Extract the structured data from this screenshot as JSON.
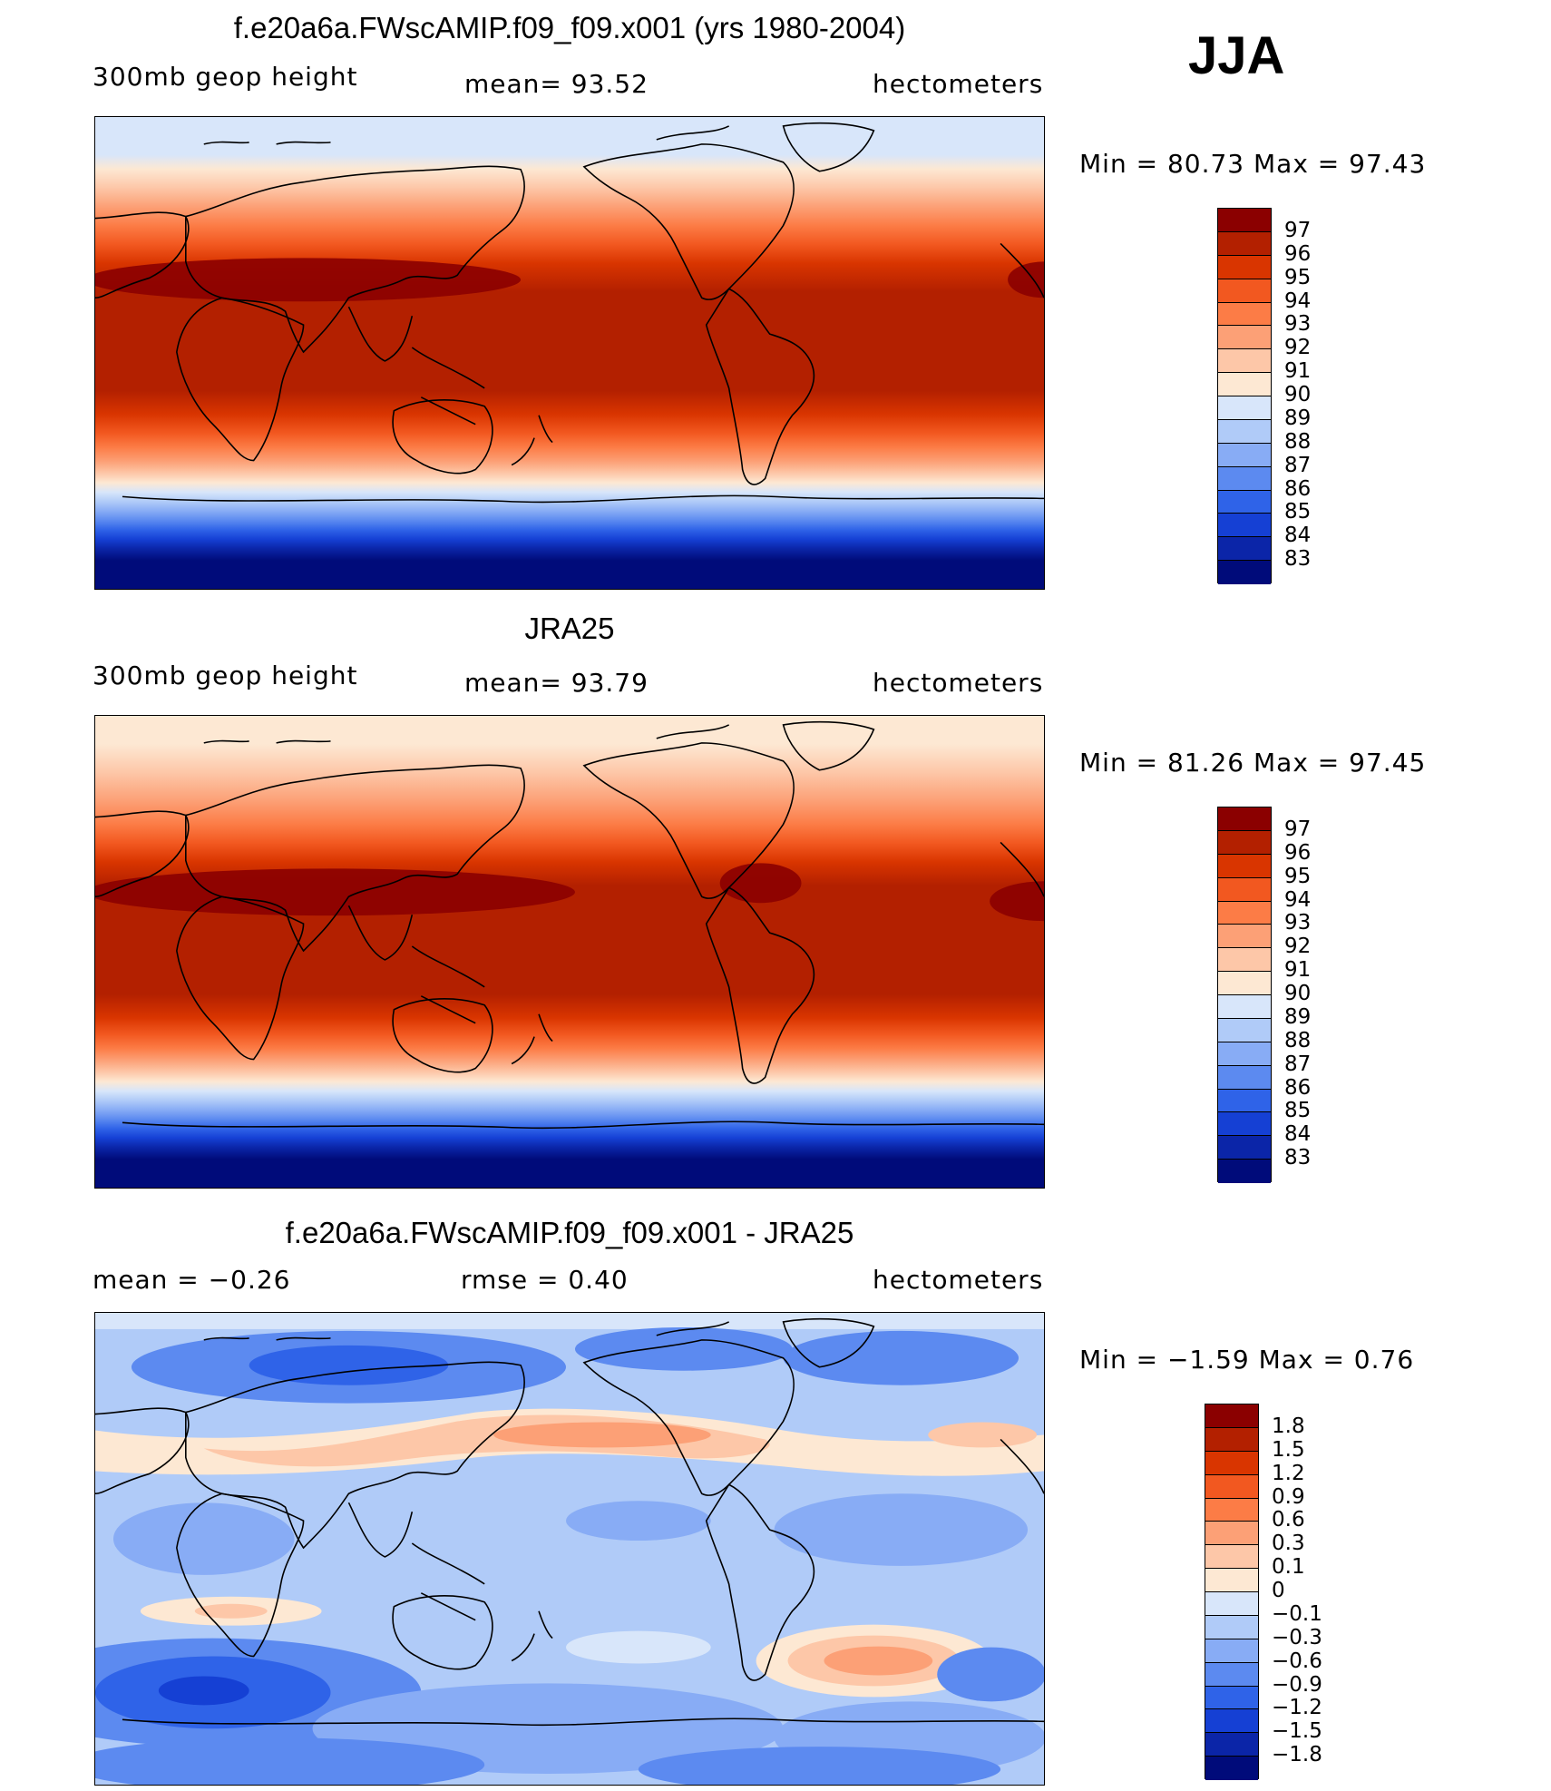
{
  "season": "JJA",
  "panels": [
    {
      "title": "f.e20a6a.FWscAMIP.f09_f09.x001 (yrs 1980-2004)",
      "left_label": "300mb  geop  height",
      "center_label": "mean=   93.52",
      "right_label": "hectometers",
      "min_max": "Min  =    80.73  Max  =    97.43",
      "colorbar_labels": [
        "97",
        "96",
        "95",
        "94",
        "93",
        "92",
        "91",
        "90",
        "89",
        "88",
        "87",
        "86",
        "85",
        "84",
        "83"
      ],
      "colorbar_colors": [
        "#8b0000",
        "#b32000",
        "#d93500",
        "#f25820",
        "#fc7c46",
        "#fca076",
        "#fdc7a8",
        "#fde8d3",
        "#d8e6fa",
        "#b0cbf8",
        "#88acf5",
        "#5c8af0",
        "#2f63e8",
        "#1540d4",
        "#0b25a8",
        "#000b7a"
      ]
    },
    {
      "title": "JRA25",
      "left_label": "300mb  geop  height",
      "center_label": "mean=   93.79",
      "right_label": "hectometers",
      "min_max": "Min  =    81.26  Max  =    97.45",
      "colorbar_labels": [
        "97",
        "96",
        "95",
        "94",
        "93",
        "92",
        "91",
        "90",
        "89",
        "88",
        "87",
        "86",
        "85",
        "84",
        "83"
      ],
      "colorbar_colors": [
        "#8b0000",
        "#b32000",
        "#d93500",
        "#f25820",
        "#fc7c46",
        "#fca076",
        "#fdc7a8",
        "#fde8d3",
        "#d8e6fa",
        "#b0cbf8",
        "#88acf5",
        "#5c8af0",
        "#2f63e8",
        "#1540d4",
        "#0b25a8",
        "#000b7a"
      ]
    },
    {
      "title": "f.e20a6a.FWscAMIP.f09_f09.x001 - JRA25",
      "left_label": "mean  =    −0.26",
      "center_label": "rmse  =     0.40",
      "right_label": "hectometers",
      "min_max": "Min  =    −1.59  Max  =      0.76",
      "colorbar_labels": [
        "1.8",
        "1.5",
        "1.2",
        "0.9",
        "0.6",
        "0.3",
        "0.1",
        "0",
        "−0.1",
        "−0.3",
        "−0.6",
        "−0.9",
        "−1.2",
        "−1.5",
        "−1.8"
      ],
      "colorbar_colors": [
        "#8b0000",
        "#b32000",
        "#d93500",
        "#f25820",
        "#fc7c46",
        "#fca076",
        "#fdc7a8",
        "#fde8d3",
        "#d8e6fa",
        "#b0cbf8",
        "#88acf5",
        "#5c8af0",
        "#2f63e8",
        "#1540d4",
        "#0b25a8",
        "#000b7a"
      ]
    }
  ]
}
